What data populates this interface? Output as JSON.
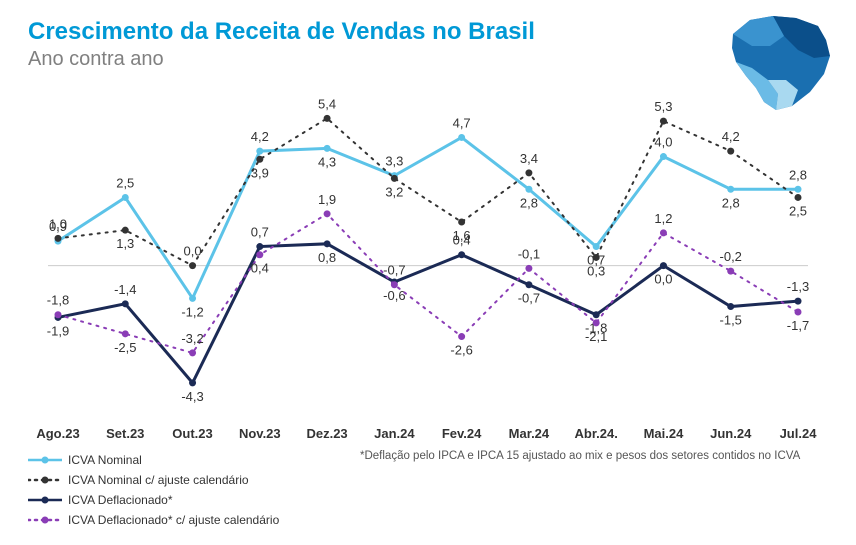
{
  "title": "Crescimento da Receita de Vendas no Brasil",
  "subtitle": "Ano contra ano",
  "footnote": "*Deflação pelo IPCA e IPCA 15 ajustado ao mix e pesos dos setores contidos no ICVA",
  "chart": {
    "type": "line",
    "background_color": "#ffffff",
    "axis_zero_color": "#cccccc",
    "title_fontsize": 24,
    "subtitle_fontsize": 20,
    "label_fontsize": 13,
    "xlim": [
      0,
      11
    ],
    "ylim": [
      -5.0,
      6.0
    ],
    "categories": [
      "Ago.23",
      "Set.23",
      "Out.23",
      "Nov.23",
      "Dez.23",
      "Jan.24",
      "Fev.24",
      "Mar.24",
      "Abr.24.",
      "Mai.24",
      "Jun.24",
      "Jul.24"
    ],
    "series": [
      {
        "name": "ICVA Nominal",
        "color": "#5cc3e8",
        "dash": "solid",
        "marker": "circle",
        "marker_size": 7,
        "line_width": 3,
        "label_placement": [
          "above",
          "above",
          "below",
          "above",
          "below",
          "above",
          "above",
          "below",
          "below",
          "above",
          "below",
          "above"
        ],
        "values": [
          0.9,
          2.5,
          -1.2,
          4.2,
          4.3,
          3.3,
          4.7,
          2.8,
          0.7,
          4.0,
          2.8,
          2.8
        ]
      },
      {
        "name": "ICVA Nominal c/ ajuste calendário",
        "color": "#333333",
        "dash": "dotted",
        "marker": "circle",
        "marker_size": 7,
        "line_width": 2,
        "label_placement": [
          "above",
          "below",
          "above",
          "below",
          "above",
          "below",
          "below",
          "above",
          "below",
          "above",
          "above",
          "below"
        ],
        "values": [
          1.0,
          1.3,
          0.0,
          3.9,
          5.4,
          3.2,
          1.6,
          3.4,
          0.3,
          5.3,
          4.2,
          2.5
        ]
      },
      {
        "name": "ICVA Deflacionado*",
        "color": "#1b2a55",
        "dash": "solid",
        "marker": "circle",
        "marker_size": 7,
        "line_width": 3,
        "label_placement": [
          "below",
          "above",
          "below",
          "above",
          "below",
          "below",
          "above",
          "below",
          "below",
          "below",
          "below",
          "above"
        ],
        "values": [
          -1.9,
          -1.4,
          -4.3,
          0.7,
          0.8,
          -0.6,
          0.4,
          -0.7,
          -1.8,
          0.0,
          -1.5,
          -1.3
        ]
      },
      {
        "name": "ICVA Deflacionado* c/ ajuste calendário",
        "color": "#8a3db6",
        "dash": "dotted",
        "marker": "circle",
        "marker_size": 7,
        "line_width": 2,
        "label_placement": [
          "above",
          "below",
          "above",
          "below",
          "above",
          "above",
          "below",
          "above",
          "below",
          "above",
          "above",
          "below"
        ],
        "values": [
          -1.8,
          -2.5,
          -3.2,
          0.4,
          1.9,
          -0.7,
          -2.6,
          -0.1,
          -2.1,
          1.2,
          -0.2,
          -1.7
        ]
      }
    ]
  },
  "brazil_map": {
    "fill_colors": [
      "#0b4f8a",
      "#1a6fb0",
      "#3a93cf",
      "#6bbbe6",
      "#a9d9f0"
    ]
  }
}
